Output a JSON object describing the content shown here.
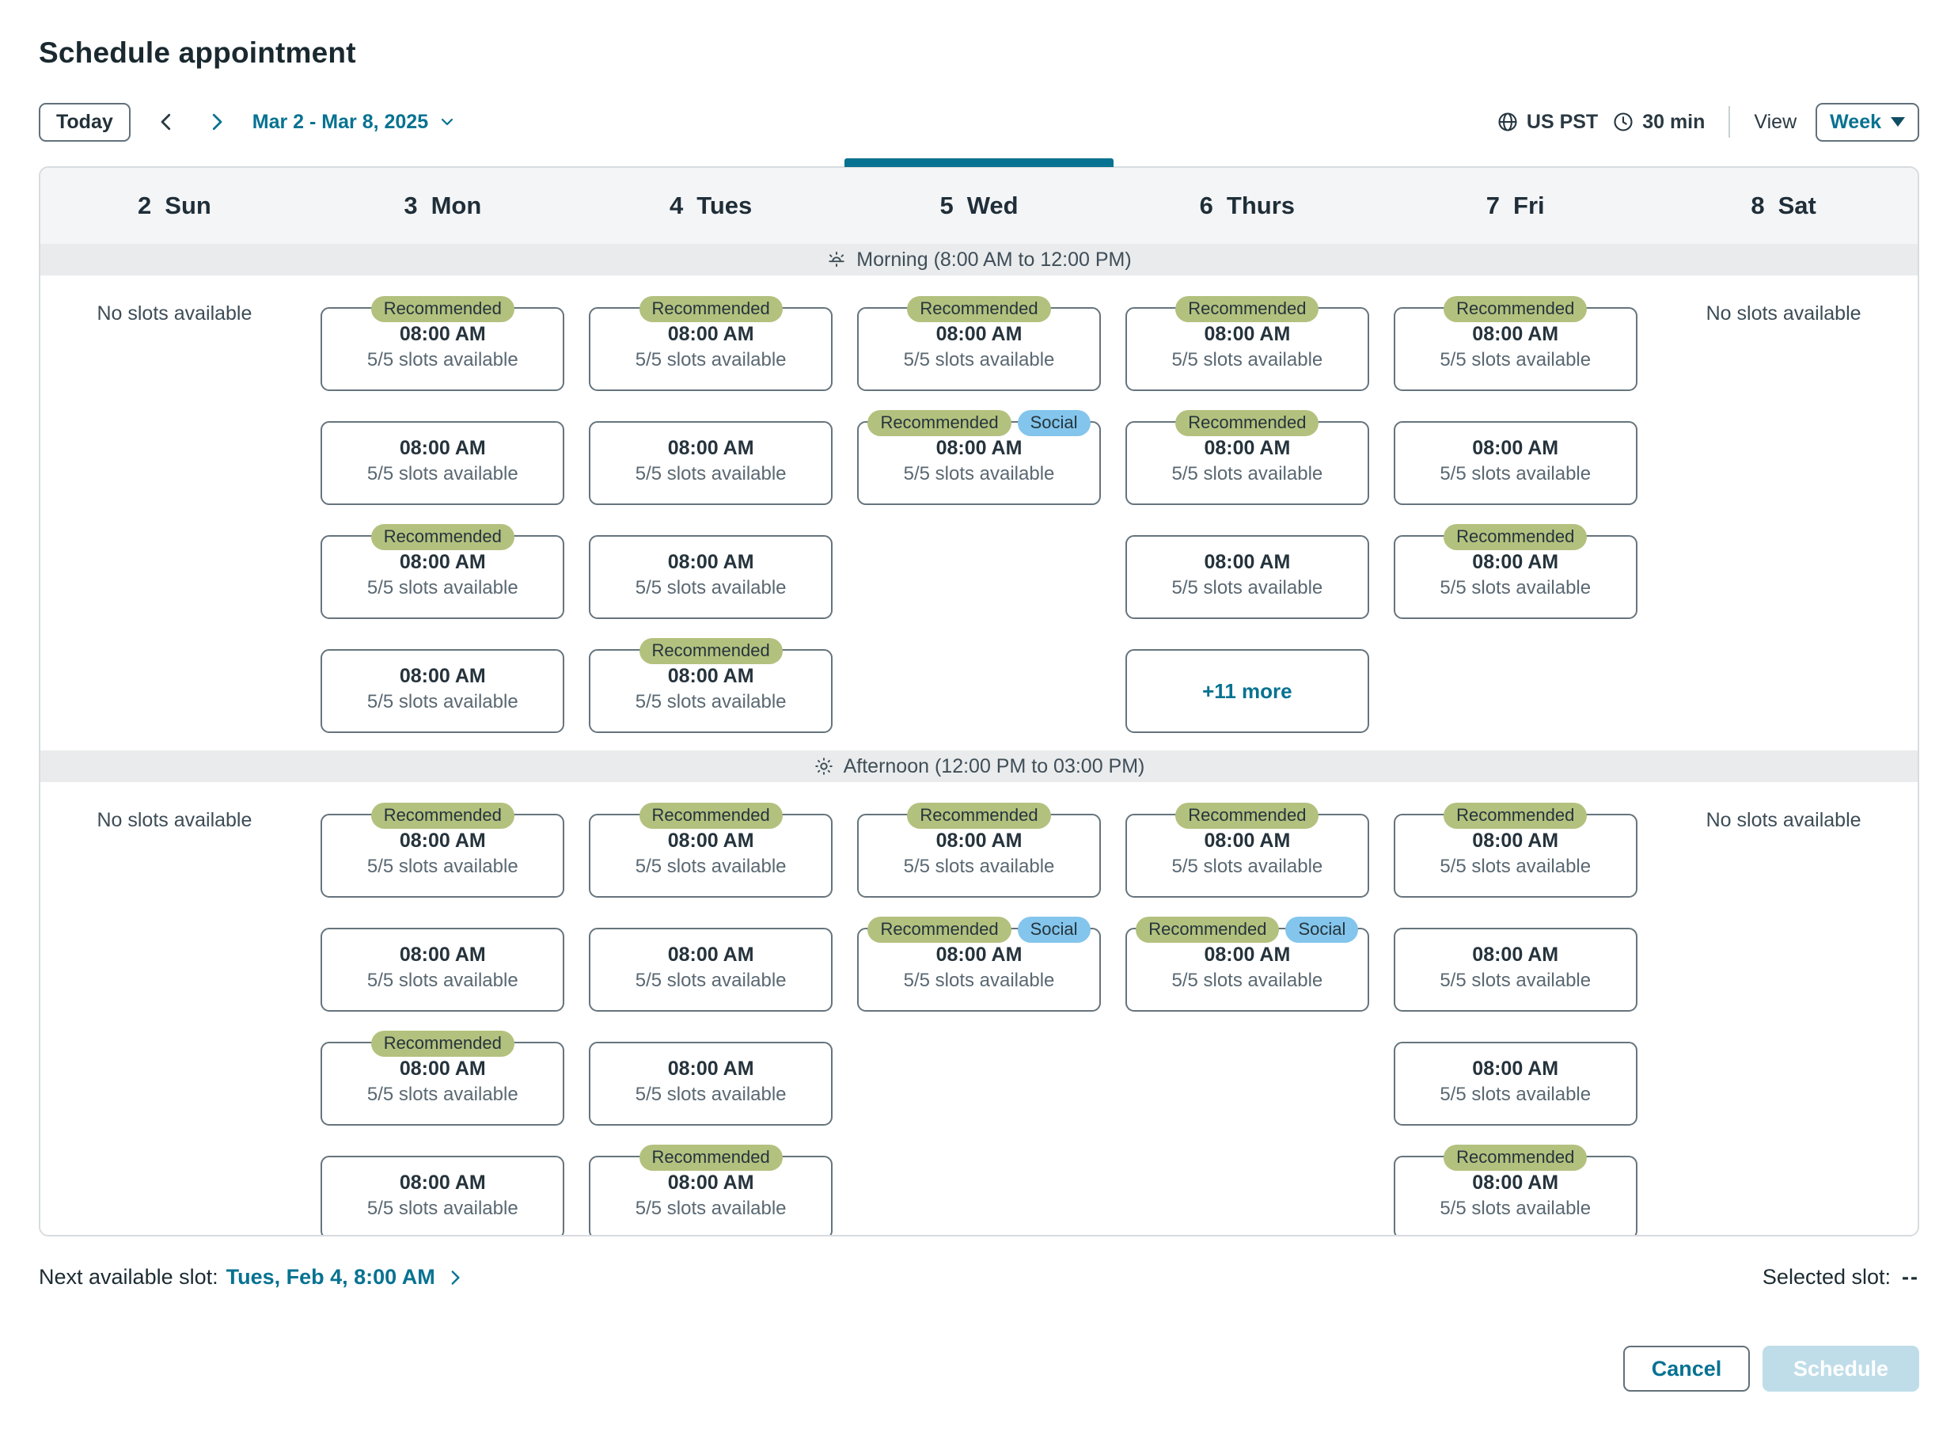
{
  "page": {
    "title": "Schedule appointment"
  },
  "toolbar": {
    "today_label": "Today",
    "date_range": "Mar 2 - Mar 8, 2025",
    "timezone": "US PST",
    "duration": "30 min",
    "view_label": "View",
    "view_value": "Week"
  },
  "calendar": {
    "selected_day": "Wed",
    "days": [
      {
        "number": "2",
        "name": "Sun"
      },
      {
        "number": "3",
        "name": "Mon"
      },
      {
        "number": "4",
        "name": "Tues"
      },
      {
        "number": "5",
        "name": "Wed"
      },
      {
        "number": "6",
        "name": "Thurs"
      },
      {
        "number": "7",
        "name": "Fri"
      },
      {
        "number": "8",
        "name": "Sat"
      }
    ],
    "sections": [
      {
        "id": "morning",
        "label": "Morning (8:00 AM to 12:00 PM)",
        "icon": "sunrise-icon",
        "columns": [
          {
            "day": "Sun",
            "no_slots": "No slots available"
          },
          {
            "day": "Mon",
            "cells": [
              {
                "type": "slot",
                "time": "08:00 AM",
                "availability": "5/5 slots available",
                "badges": [
                  "Recommended"
                ]
              },
              {
                "type": "slot",
                "time": "08:00 AM",
                "availability": "5/5 slots available",
                "badges": []
              },
              {
                "type": "slot",
                "time": "08:00 AM",
                "availability": "5/5 slots available",
                "badges": [
                  "Recommended"
                ]
              },
              {
                "type": "slot",
                "time": "08:00 AM",
                "availability": "5/5 slots available",
                "badges": []
              }
            ]
          },
          {
            "day": "Tues",
            "cells": [
              {
                "type": "slot",
                "time": "08:00 AM",
                "availability": "5/5 slots available",
                "badges": [
                  "Recommended"
                ]
              },
              {
                "type": "slot",
                "time": "08:00 AM",
                "availability": "5/5 slots available",
                "badges": []
              },
              {
                "type": "slot",
                "time": "08:00 AM",
                "availability": "5/5 slots available",
                "badges": []
              },
              {
                "type": "slot",
                "time": "08:00 AM",
                "availability": "5/5 slots available",
                "badges": [
                  "Recommended"
                ]
              }
            ]
          },
          {
            "day": "Wed",
            "cells": [
              {
                "type": "slot",
                "time": "08:00 AM",
                "availability": "5/5 slots available",
                "badges": [
                  "Recommended"
                ]
              },
              {
                "type": "slot",
                "time": "08:00 AM",
                "availability": "5/5 slots available",
                "badges": [
                  "Recommended",
                  "Social"
                ]
              },
              null,
              null
            ]
          },
          {
            "day": "Thurs",
            "cells": [
              {
                "type": "slot",
                "time": "08:00 AM",
                "availability": "5/5 slots available",
                "badges": [
                  "Recommended"
                ]
              },
              {
                "type": "slot",
                "time": "08:00 AM",
                "availability": "5/5 slots available",
                "badges": [
                  "Recommended"
                ]
              },
              {
                "type": "slot",
                "time": "08:00 AM",
                "availability": "5/5 slots available",
                "badges": []
              },
              {
                "type": "more",
                "label": "+11 more"
              }
            ]
          },
          {
            "day": "Fri",
            "cells": [
              {
                "type": "slot",
                "time": "08:00 AM",
                "availability": "5/5 slots available",
                "badges": [
                  "Recommended"
                ]
              },
              {
                "type": "slot",
                "time": "08:00 AM",
                "availability": "5/5 slots available",
                "badges": []
              },
              {
                "type": "slot",
                "time": "08:00 AM",
                "availability": "5/5 slots available",
                "badges": [
                  "Recommended"
                ]
              },
              null
            ]
          },
          {
            "day": "Sat",
            "no_slots": "No slots available"
          }
        ]
      },
      {
        "id": "afternoon",
        "label": "Afternoon (12:00 PM to 03:00 PM)",
        "icon": "sun-icon",
        "columns": [
          {
            "day": "Sun",
            "no_slots": "No slots available"
          },
          {
            "day": "Mon",
            "cells": [
              {
                "type": "slot",
                "time": "08:00 AM",
                "availability": "5/5 slots available",
                "badges": [
                  "Recommended"
                ]
              },
              {
                "type": "slot",
                "time": "08:00 AM",
                "availability": "5/5 slots available",
                "badges": []
              },
              {
                "type": "slot",
                "time": "08:00 AM",
                "availability": "5/5 slots available",
                "badges": [
                  "Recommended"
                ]
              },
              {
                "type": "slot",
                "time": "08:00 AM",
                "availability": "5/5 slots available",
                "badges": []
              }
            ]
          },
          {
            "day": "Tues",
            "cells": [
              {
                "type": "slot",
                "time": "08:00 AM",
                "availability": "5/5 slots available",
                "badges": [
                  "Recommended"
                ]
              },
              {
                "type": "slot",
                "time": "08:00 AM",
                "availability": "5/5 slots available",
                "badges": []
              },
              {
                "type": "slot",
                "time": "08:00 AM",
                "availability": "5/5 slots available",
                "badges": []
              },
              {
                "type": "slot",
                "time": "08:00 AM",
                "availability": "5/5 slots available",
                "badges": [
                  "Recommended"
                ]
              }
            ]
          },
          {
            "day": "Wed",
            "cells": [
              {
                "type": "slot",
                "time": "08:00 AM",
                "availability": "5/5 slots available",
                "badges": [
                  "Recommended"
                ]
              },
              {
                "type": "slot",
                "time": "08:00 AM",
                "availability": "5/5 slots available",
                "badges": [
                  "Recommended",
                  "Social"
                ]
              },
              null,
              null
            ]
          },
          {
            "day": "Thurs",
            "cells": [
              {
                "type": "slot",
                "time": "08:00 AM",
                "availability": "5/5 slots available",
                "badges": [
                  "Recommended"
                ]
              },
              {
                "type": "slot",
                "time": "08:00 AM",
                "availability": "5/5 slots available",
                "badges": [
                  "Recommended",
                  "Social"
                ]
              },
              null,
              null
            ]
          },
          {
            "day": "Fri",
            "cells": [
              {
                "type": "slot",
                "time": "08:00 AM",
                "availability": "5/5 slots available",
                "badges": [
                  "Recommended"
                ]
              },
              {
                "type": "slot",
                "time": "08:00 AM",
                "availability": "5/5 slots available",
                "badges": []
              },
              {
                "type": "slot",
                "time": "08:00 AM",
                "availability": "5/5 slots available",
                "badges": []
              },
              {
                "type": "slot",
                "time": "08:00 AM",
                "availability": "5/5 slots available",
                "badges": [
                  "Recommended"
                ]
              }
            ]
          },
          {
            "day": "Sat",
            "no_slots": "No slots available"
          }
        ]
      }
    ]
  },
  "footer": {
    "next_label": "Next available slot:",
    "next_value": "Tues, Feb 4, 8:00 AM",
    "selected_label": "Selected slot:",
    "selected_value": "--"
  },
  "actions": {
    "cancel_label": "Cancel",
    "schedule_label": "Schedule"
  },
  "colors": {
    "accent": "#077291",
    "badge_recommended": "#b3c17e",
    "badge_social": "#83c5ec",
    "selected_indicator": "#077291",
    "disabled_button": "#bfdde9"
  }
}
